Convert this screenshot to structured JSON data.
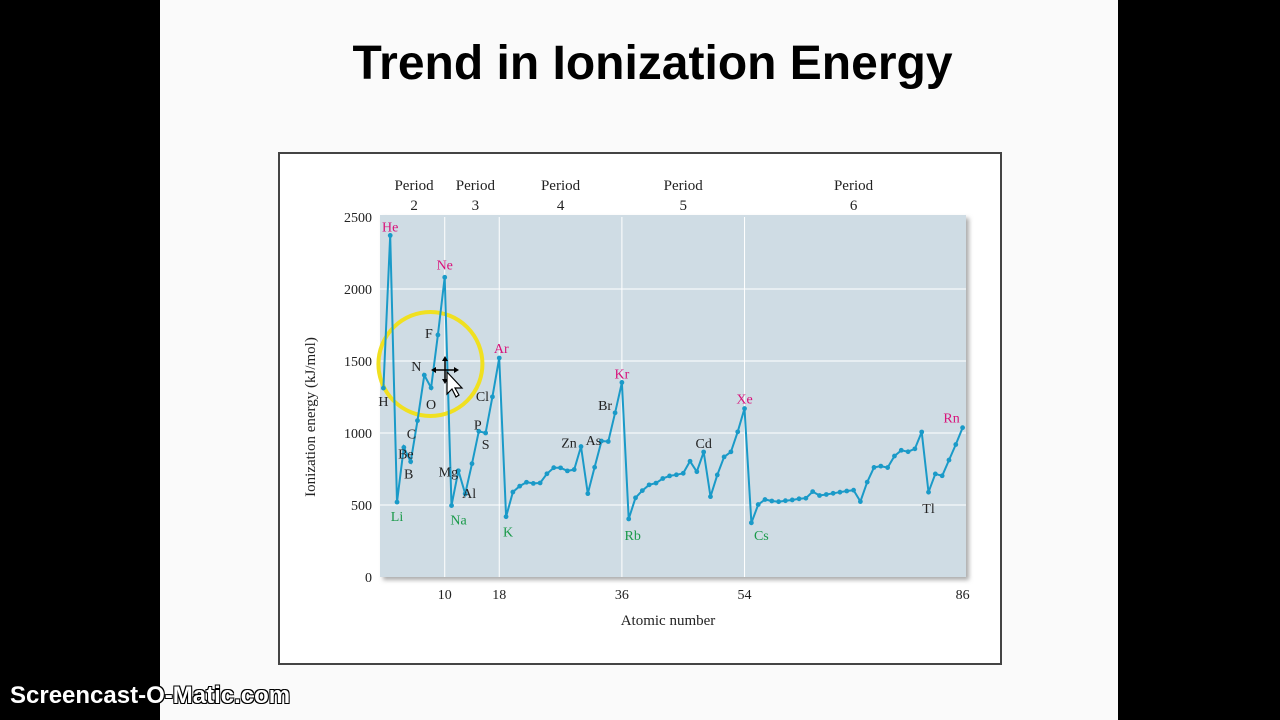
{
  "slide": {
    "title": "Trend in Ionization Energy"
  },
  "watermark": "Screencast-O-Matic.com",
  "colors": {
    "plot_bg": "#cfdce4",
    "line": "#1a9ac8",
    "noble": "#d8127a",
    "alkali": "#1a9a4a",
    "highlight": "#f0e020"
  },
  "chart_data": {
    "type": "line",
    "title": "",
    "xlabel": "Atomic number",
    "ylabel": "Ionization energy (kJ/mol)",
    "xlim": [
      0.5,
      86.5
    ],
    "ylim": [
      0,
      2500
    ],
    "yticks": [
      0,
      500,
      1000,
      1500,
      2000,
      2500
    ],
    "xticks": [
      10,
      18,
      36,
      54,
      86
    ],
    "vlines": [
      10,
      18,
      36,
      54
    ],
    "periods": [
      {
        "label": "Period",
        "number": "2",
        "x_center": 5.5
      },
      {
        "label": "Period",
        "number": "3",
        "x_center": 14.5
      },
      {
        "label": "Period",
        "number": "4",
        "x_center": 27
      },
      {
        "label": "Period",
        "number": "5",
        "x_center": 45
      },
      {
        "label": "Period",
        "number": "6",
        "x_center": 70
      }
    ],
    "x": [
      1,
      2,
      3,
      4,
      5,
      6,
      7,
      8,
      9,
      10,
      11,
      12,
      13,
      14,
      15,
      16,
      17,
      18,
      19,
      20,
      21,
      22,
      23,
      24,
      25,
      26,
      27,
      28,
      29,
      30,
      31,
      32,
      33,
      34,
      35,
      36,
      37,
      38,
      39,
      40,
      41,
      42,
      43,
      44,
      45,
      46,
      47,
      48,
      49,
      50,
      51,
      52,
      53,
      54,
      55,
      56,
      57,
      58,
      59,
      60,
      61,
      62,
      63,
      64,
      65,
      66,
      67,
      68,
      69,
      70,
      71,
      72,
      73,
      74,
      75,
      76,
      77,
      78,
      79,
      80,
      81,
      82,
      83,
      84,
      85,
      86
    ],
    "y": [
      1312,
      2372,
      520,
      900,
      801,
      1086,
      1402,
      1314,
      1681,
      2081,
      496,
      738,
      578,
      787,
      1012,
      1000,
      1251,
      1521,
      419,
      590,
      631,
      658,
      650,
      653,
      717,
      759,
      758,
      737,
      746,
      906,
      579,
      762,
      944,
      941,
      1140,
      1351,
      403,
      550,
      600,
      640,
      652,
      684,
      702,
      710,
      720,
      804,
      731,
      868,
      558,
      709,
      834,
      869,
      1008,
      1170,
      376,
      503,
      538,
      528,
      523,
      530,
      535,
      543,
      547,
      593,
      566,
      573,
      581,
      589,
      597,
      603,
      524,
      659,
      761,
      770,
      760,
      840,
      880,
      870,
      890,
      1007,
      589,
      716,
      703,
      812,
      920,
      1037
    ],
    "element_labels": [
      {
        "x": 1,
        "text": "H",
        "group": "normal"
      },
      {
        "x": 2,
        "text": "He",
        "group": "noble"
      },
      {
        "x": 3,
        "text": "Li",
        "group": "alkali"
      },
      {
        "x": 4,
        "text": "Be",
        "group": "normal"
      },
      {
        "x": 5,
        "text": "B",
        "group": "normal"
      },
      {
        "x": 6,
        "text": "C",
        "group": "normal"
      },
      {
        "x": 7,
        "text": "N",
        "group": "normal"
      },
      {
        "x": 8,
        "text": "O",
        "group": "normal"
      },
      {
        "x": 9,
        "text": "F",
        "group": "normal"
      },
      {
        "x": 10,
        "text": "Ne",
        "group": "noble"
      },
      {
        "x": 11,
        "text": "Na",
        "group": "alkali"
      },
      {
        "x": 12,
        "text": "Mg",
        "group": "normal"
      },
      {
        "x": 13,
        "text": "Al",
        "group": "normal"
      },
      {
        "x": 15,
        "text": "P",
        "group": "normal"
      },
      {
        "x": 16,
        "text": "S",
        "group": "normal"
      },
      {
        "x": 17,
        "text": "Cl",
        "group": "normal"
      },
      {
        "x": 18,
        "text": "Ar",
        "group": "noble"
      },
      {
        "x": 19,
        "text": "K",
        "group": "alkali"
      },
      {
        "x": 30,
        "text": "Zn",
        "group": "normal"
      },
      {
        "x": 33,
        "text": "As",
        "group": "normal"
      },
      {
        "x": 35,
        "text": "Br",
        "group": "normal"
      },
      {
        "x": 36,
        "text": "Kr",
        "group": "noble"
      },
      {
        "x": 37,
        "text": "Rb",
        "group": "alkali"
      },
      {
        "x": 48,
        "text": "Cd",
        "group": "normal"
      },
      {
        "x": 54,
        "text": "Xe",
        "group": "noble"
      },
      {
        "x": 55,
        "text": "Cs",
        "group": "alkali"
      },
      {
        "x": 81,
        "text": "Tl",
        "group": "normal"
      },
      {
        "x": 86,
        "text": "Rn",
        "group": "noble"
      }
    ]
  }
}
